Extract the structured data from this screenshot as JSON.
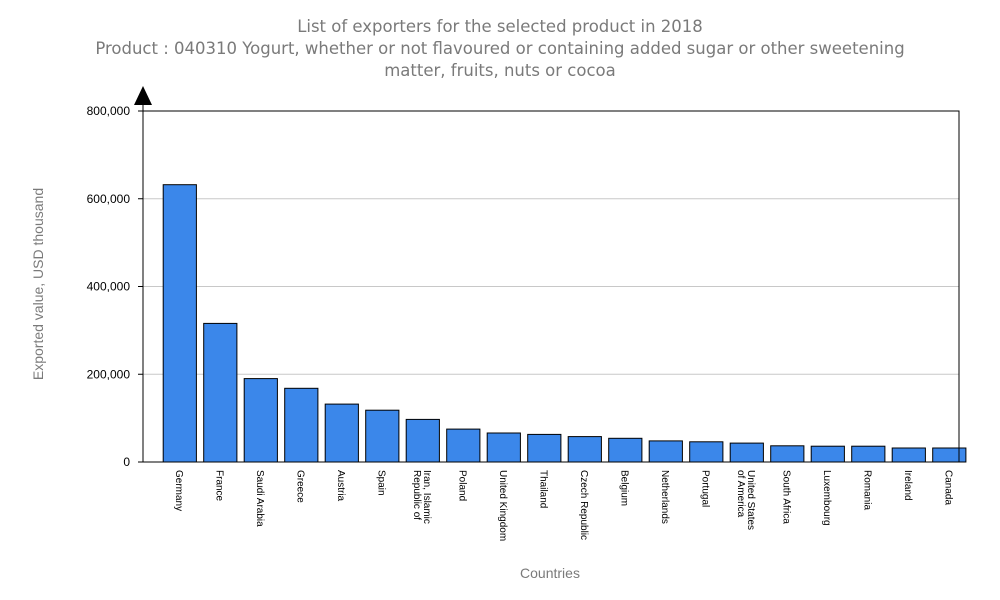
{
  "chart_data": {
    "type": "bar",
    "title": "List of exporters for the selected product in 2018",
    "subtitle": "Product : 040310 Yogurt, whether or not flavoured or containing added sugar or other sweetening matter, fruits, nuts or cocoa",
    "xlabel": "Countries",
    "ylabel": "Exported value, USD thousand",
    "ylim": [
      0,
      800000
    ],
    "yticks": [
      0,
      200000,
      400000,
      600000,
      800000
    ],
    "ytick_labels": [
      "0",
      "200,000",
      "400,000",
      "600,000",
      "800,000"
    ],
    "grid": true,
    "bar_color": "#3b87ea",
    "categories": [
      "Germany",
      "France",
      "Saudi Arabia",
      "Greece",
      "Austria",
      "Spain",
      "Iran, Islamic Republic of",
      "Poland",
      "United Kingdom",
      "Thailand",
      "Czech Republic",
      "Belgium",
      "Netherlands",
      "Portugal",
      "United States of America",
      "South Africa",
      "Luxembourg",
      "Romania",
      "Ireland",
      "Canada"
    ],
    "category_lines": [
      [
        "Germany"
      ],
      [
        "France"
      ],
      [
        "Saudi Arabia"
      ],
      [
        "Greece"
      ],
      [
        "Austria"
      ],
      [
        "Spain"
      ],
      [
        "Iran, Islamic",
        "Republic of"
      ],
      [
        "Poland"
      ],
      [
        "United Kingdom"
      ],
      [
        "Thailand"
      ],
      [
        "Czech Republic"
      ],
      [
        "Belgium"
      ],
      [
        "Netherlands"
      ],
      [
        "Portugal"
      ],
      [
        "United States",
        "of America"
      ],
      [
        "South Africa"
      ],
      [
        "Luxembourg"
      ],
      [
        "Romania"
      ],
      [
        "Ireland"
      ],
      [
        "Canada"
      ]
    ],
    "values": [
      632000,
      316000,
      190000,
      168000,
      132000,
      118000,
      97000,
      75000,
      66000,
      63000,
      58000,
      54000,
      48000,
      46000,
      43000,
      37000,
      36000,
      36000,
      32000,
      32000
    ]
  }
}
